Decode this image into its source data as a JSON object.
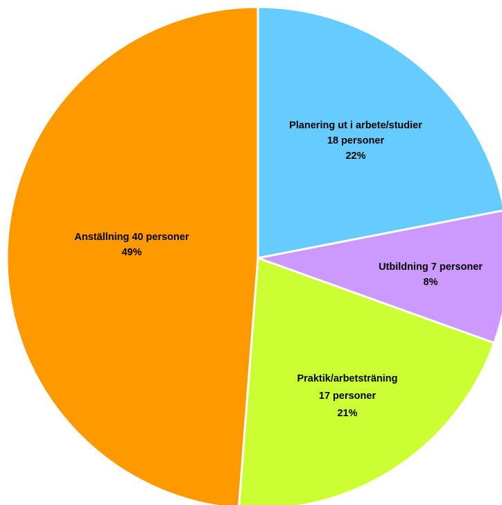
{
  "chart_data": {
    "type": "pie",
    "title": "",
    "slices": [
      {
        "label": "Planering ut i arbete/studier",
        "count": 18,
        "unit": "personer",
        "percent": 22,
        "color": "#66CCFF",
        "label_lines": [
          "Planering ut i arbete/studier",
          "18 personer",
          "22%"
        ]
      },
      {
        "label": "Utbildning",
        "count": 7,
        "unit": "personer",
        "percent": 8,
        "color": "#CC99FF",
        "label_lines": [
          "Utbildning 7 personer",
          "8%"
        ]
      },
      {
        "label": "Praktik/arbetsträning",
        "count": 17,
        "unit": "personer",
        "percent": 21,
        "color": "#CCFF33",
        "label_lines": [
          "Praktik/arbetsträning",
          "17 personer",
          "21%"
        ]
      },
      {
        "label": "Anställning",
        "count": 40,
        "unit": "personer",
        "percent": 49,
        "color": "#FF9900",
        "label_lines": [
          "Anställning 40 personer",
          "49%"
        ]
      }
    ],
    "start_angle": "12 o'clock",
    "direction": "clockwise",
    "legend": "none"
  }
}
